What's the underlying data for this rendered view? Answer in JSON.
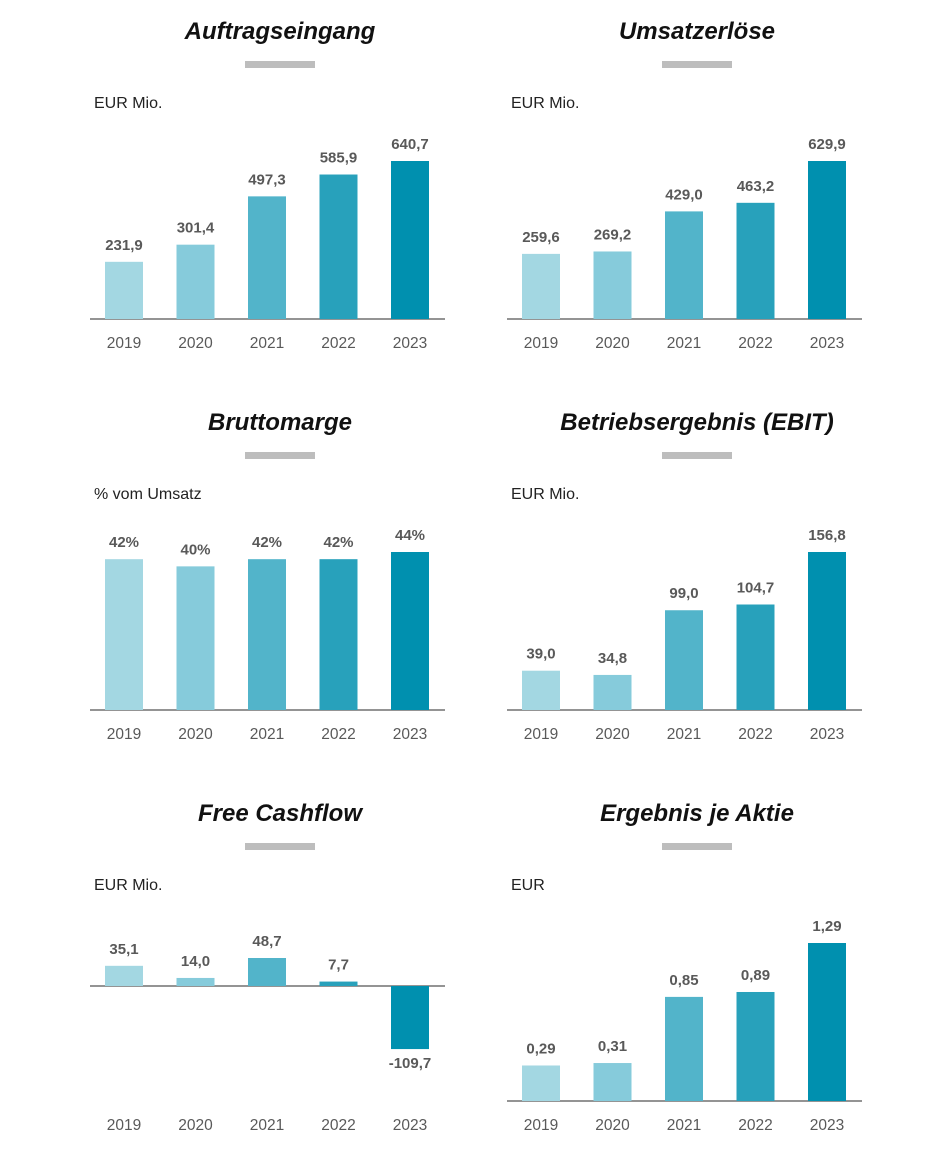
{
  "colors": [
    "#a3d7e2",
    "#86cbdb",
    "#52b4ca",
    "#28a1bb",
    "#0090af"
  ],
  "chart_data": [
    {
      "type": "bar",
      "title": "Auftragseingang",
      "unit": "EUR Mio.",
      "categories": [
        "2019",
        "2020",
        "2021",
        "2022",
        "2023"
      ],
      "values": [
        231.9,
        301.4,
        497.3,
        585.9,
        640.7
      ],
      "labels": [
        "231,9",
        "301,4",
        "497,3",
        "585,9",
        "640,7"
      ],
      "ylim": [
        0,
        640.7
      ]
    },
    {
      "type": "bar",
      "title": "Umsatzerlöse",
      "unit": "EUR Mio.",
      "categories": [
        "2019",
        "2020",
        "2021",
        "2022",
        "2023"
      ],
      "values": [
        259.6,
        269.2,
        429.0,
        463.2,
        629.9
      ],
      "labels": [
        "259,6",
        "269,2",
        "429,0",
        "463,2",
        "629,9"
      ],
      "ylim": [
        0,
        629.9
      ]
    },
    {
      "type": "bar",
      "title": "Bruttomarge",
      "unit": "% vom Umsatz",
      "categories": [
        "2019",
        "2020",
        "2021",
        "2022",
        "2023"
      ],
      "values": [
        42,
        40,
        42,
        42,
        44
      ],
      "labels": [
        "42%",
        "40%",
        "42%",
        "42%",
        "44%"
      ],
      "ylim": [
        0,
        44
      ]
    },
    {
      "type": "bar",
      "title": "Betriebsergebnis (EBIT)",
      "unit": "EUR Mio.",
      "categories": [
        "2019",
        "2020",
        "2021",
        "2022",
        "2023"
      ],
      "values": [
        39.0,
        34.8,
        99.0,
        104.7,
        156.8
      ],
      "labels": [
        "39,0",
        "34,8",
        "99,0",
        "104,7",
        "156,8"
      ],
      "ylim": [
        0,
        156.8
      ]
    },
    {
      "type": "bar",
      "title": "Free Cashflow",
      "unit": "EUR Mio.",
      "categories": [
        "2019",
        "2020",
        "2021",
        "2022",
        "2023"
      ],
      "values": [
        35.1,
        14.0,
        48.7,
        7.7,
        -109.7
      ],
      "labels": [
        "35,1",
        "14,0",
        "48,7",
        "7,7",
        "-109,7"
      ],
      "ylim": [
        -109.7,
        48.7
      ]
    },
    {
      "type": "bar",
      "title": "Ergebnis je Aktie",
      "unit": "EUR",
      "categories": [
        "2019",
        "2020",
        "2021",
        "2022",
        "2023"
      ],
      "values": [
        0.29,
        0.31,
        0.85,
        0.89,
        1.29
      ],
      "labels": [
        "0,29",
        "0,31",
        "0,85",
        "0,89",
        "1,29"
      ],
      "ylim": [
        0,
        1.29
      ]
    }
  ]
}
